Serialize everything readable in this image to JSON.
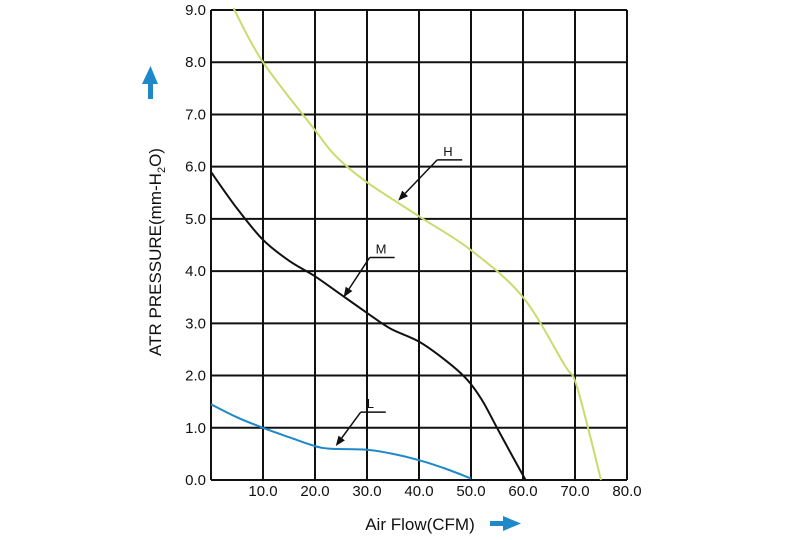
{
  "chart_data": {
    "type": "line",
    "xlabel": "Air Flow(CFM)",
    "ylabel_main": "ATR PRESSURE(mm-H",
    "ylabel_sub": "2",
    "ylabel_end": "O)",
    "xlim": [
      0,
      80
    ],
    "ylim": [
      0,
      9
    ],
    "grid": true,
    "x_ticks": [
      {
        "value": 10,
        "label": "10.0"
      },
      {
        "value": 20,
        "label": "20.0"
      },
      {
        "value": 30,
        "label": "30.0"
      },
      {
        "value": 40,
        "label": "40.0"
      },
      {
        "value": 50,
        "label": "50.0"
      },
      {
        "value": 60,
        "label": "60.0"
      },
      {
        "value": 70,
        "label": "70.0"
      },
      {
        "value": 80,
        "label": "80.0"
      }
    ],
    "y_ticks": [
      {
        "value": 0,
        "label": "0.0"
      },
      {
        "value": 1,
        "label": "1.0"
      },
      {
        "value": 2,
        "label": "2.0"
      },
      {
        "value": 3,
        "label": "3.0"
      },
      {
        "value": 4,
        "label": "4.0"
      },
      {
        "value": 5,
        "label": "5.0"
      },
      {
        "value": 6,
        "label": "6.0"
      },
      {
        "value": 7,
        "label": "7.0"
      },
      {
        "value": 8,
        "label": "8.0"
      },
      {
        "value": 9,
        "label": "9.0"
      }
    ],
    "series": [
      {
        "name": "H",
        "color": "#c8dc6e",
        "points": [
          [
            4.3,
            9.2
          ],
          [
            10,
            8.0
          ],
          [
            20,
            6.7
          ],
          [
            24,
            6.2
          ],
          [
            30,
            5.7
          ],
          [
            40,
            5.05
          ],
          [
            50,
            4.4
          ],
          [
            60,
            3.5
          ],
          [
            68,
            2.2
          ],
          [
            70,
            1.9
          ],
          [
            72.5,
            1.0
          ],
          [
            75,
            0.0
          ]
        ]
      },
      {
        "name": "M",
        "color": "#111111",
        "points": [
          [
            0,
            5.9
          ],
          [
            5,
            5.2
          ],
          [
            10,
            4.6
          ],
          [
            15,
            4.2
          ],
          [
            20,
            3.9
          ],
          [
            25,
            3.55
          ],
          [
            30,
            3.2
          ],
          [
            34.5,
            2.9
          ],
          [
            40,
            2.65
          ],
          [
            45,
            2.3
          ],
          [
            49,
            1.95
          ],
          [
            52,
            1.55
          ],
          [
            55,
            1.0
          ],
          [
            58,
            0.45
          ],
          [
            60.5,
            0.0
          ]
        ]
      },
      {
        "name": "L",
        "color": "#1e88c8",
        "points": [
          [
            0,
            1.45
          ],
          [
            5,
            1.2
          ],
          [
            10,
            1.0
          ],
          [
            15,
            0.82
          ],
          [
            20,
            0.65
          ],
          [
            23,
            0.6
          ],
          [
            30,
            0.58
          ],
          [
            35,
            0.5
          ],
          [
            40,
            0.38
          ],
          [
            45,
            0.22
          ],
          [
            50,
            0.03
          ]
        ]
      }
    ],
    "annotations": [
      {
        "text": "H",
        "label_x": 43.5,
        "label_y": 6.13,
        "target_x": 36,
        "target_y": 5.35
      },
      {
        "text": "M",
        "label_x": 30.5,
        "label_y": 4.26,
        "target_x": 25.5,
        "target_y": 3.5
      },
      {
        "text": "L",
        "label_x": 28.8,
        "label_y": 1.3,
        "target_x": 24,
        "target_y": 0.65
      }
    ],
    "axis_arrow_color": "#1e88c8"
  }
}
